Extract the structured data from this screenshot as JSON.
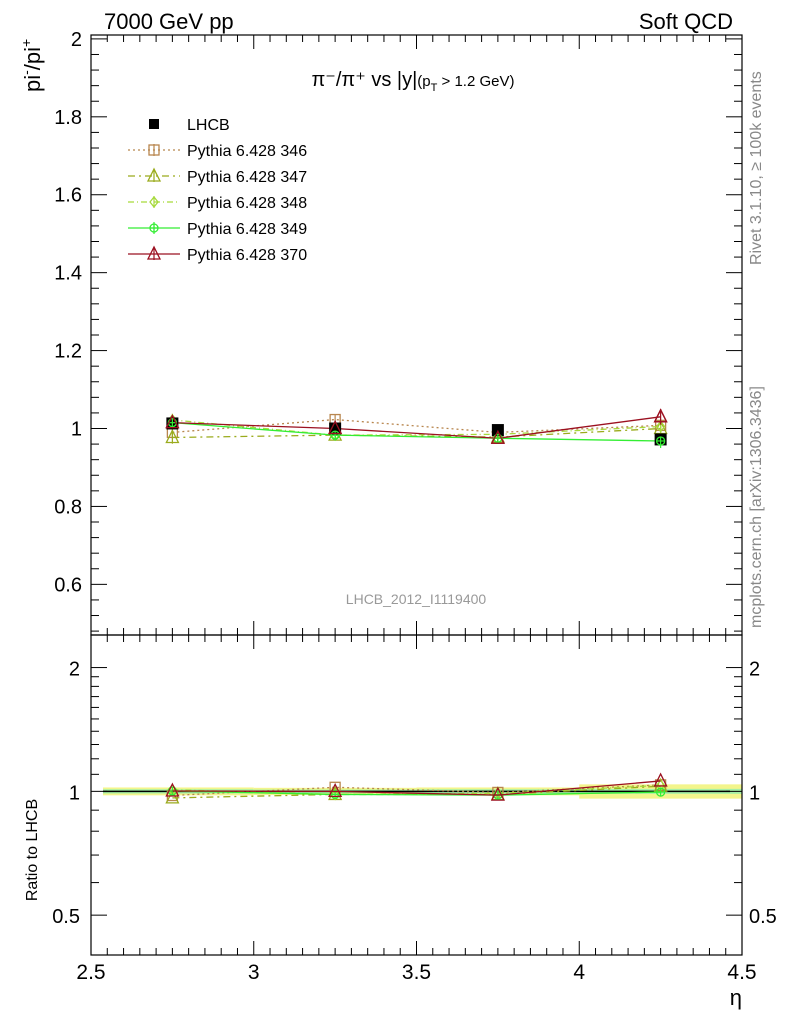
{
  "header": {
    "left": "7000 GeV pp",
    "right": "Soft QCD"
  },
  "side_labels": {
    "rivet": "Rivet 3.1.10, ≥ 100k events",
    "mcplots": "mcplots.cern.ch [arXiv:1306.3436]"
  },
  "watermark": "LHCB_2012_I1119400",
  "colors": {
    "LHCB": "#000000",
    "Pythia 6.428 346": "#b8864e",
    "Pythia 6.428 347": "#9aab1c",
    "Pythia 6.428 348": "#a6d93b",
    "Pythia 6.428 349": "#33ee33",
    "Pythia 6.428 370": "#9b1020",
    "band_stat": "#a6f0a6",
    "band_sys": "#f3f58c"
  },
  "chart_data": [
    {
      "type": "line",
      "title_parts": {
        "main": "π⁻/π⁺ vs |y|",
        "cut": "(p",
        "cut_sub": "T",
        "cut_rest": " > 1.2 GeV)"
      },
      "ylabel": {
        "base": "pi",
        "sup1": "-",
        "mid": "/pi",
        "sup2": "+"
      },
      "xlim": [
        2.5,
        4.5
      ],
      "ylim": [
        0.47,
        2.01
      ],
      "yticks": [
        0.6,
        0.8,
        1,
        1.2,
        1.4,
        1.6,
        1.8,
        2
      ],
      "ytick_labels": [
        "0.6",
        "0.8",
        "1",
        "1.2",
        "1.4",
        "1.6",
        "1.8",
        "2"
      ],
      "legend_position": "top-left",
      "x": [
        2.75,
        3.25,
        3.75,
        4.25
      ],
      "data": {
        "name": "LHCB",
        "values": [
          1.013,
          1.0,
          0.996,
          0.972
        ],
        "errors": [
          0.012,
          0.01,
          0.012,
          0.014
        ]
      },
      "series": [
        {
          "name": "Pythia 6.428 346",
          "values": [
            0.99,
            1.023,
            0.99,
            1.008
          ],
          "errors": [
            0.016,
            0.014,
            0.014,
            0.016
          ],
          "marker": "square-open",
          "dash": "2,3"
        },
        {
          "name": "Pythia 6.428 347",
          "values": [
            0.977,
            0.983,
            0.978,
            1.0
          ],
          "errors": [
            0.016,
            0.014,
            0.014,
            0.016
          ],
          "marker": "triangle-open",
          "dash": "7,4,2,4"
        },
        {
          "name": "Pythia 6.428 348",
          "values": [
            1.022,
            0.983,
            0.985,
            1.005
          ],
          "errors": [
            0.016,
            0.014,
            0.014,
            0.016
          ],
          "marker": "diamond-open",
          "dash": "6,3,1,3"
        },
        {
          "name": "Pythia 6.428 349",
          "values": [
            1.015,
            0.983,
            0.975,
            0.968
          ],
          "errors": [
            0.016,
            0.014,
            0.014,
            0.018
          ],
          "marker": "circle-cross",
          "dash": ""
        },
        {
          "name": "Pythia 6.428 370",
          "values": [
            1.015,
            1.0,
            0.975,
            1.03
          ],
          "errors": [
            0.016,
            0.014,
            0.014,
            0.02
          ],
          "marker": "triangle-open",
          "dash": ""
        }
      ]
    },
    {
      "type": "line",
      "ylabel": "Ratio to LHCB",
      "xlabel": "η",
      "xlim": [
        2.5,
        4.5
      ],
      "ylim": [
        0.4,
        2.4
      ],
      "scale": "log",
      "yticks": [
        0.5,
        1,
        2
      ],
      "ytick_labels": [
        "0.5",
        "1",
        "2"
      ],
      "xticks": [
        2.5,
        3,
        3.5,
        4,
        4.5
      ],
      "xtick_labels": [
        "2.5",
        "3",
        "3.5",
        "4",
        "4.5"
      ],
      "x": [
        2.75,
        3.25,
        3.75,
        4.25
      ],
      "band_x_edges": [
        2.5,
        3.0,
        3.5,
        4.0,
        4.5
      ],
      "band_halfwidth_stat": [
        0.012,
        0.01,
        0.012,
        0.014
      ],
      "band_halfwidth_sys": [
        0.022,
        0.02,
        0.022,
        0.04
      ],
      "series": [
        {
          "name": "Pythia 6.428 346",
          "values": [
            0.977,
            1.023,
            0.994,
            1.037
          ]
        },
        {
          "name": "Pythia 6.428 347",
          "values": [
            0.964,
            0.983,
            0.982,
            1.029
          ]
        },
        {
          "name": "Pythia 6.428 348",
          "values": [
            1.009,
            0.983,
            0.989,
            1.034
          ]
        },
        {
          "name": "Pythia 6.428 349",
          "values": [
            1.002,
            0.983,
            0.979,
            0.996
          ]
        },
        {
          "name": "Pythia 6.428 370",
          "values": [
            1.002,
            1.0,
            0.979,
            1.06
          ]
        }
      ]
    }
  ]
}
